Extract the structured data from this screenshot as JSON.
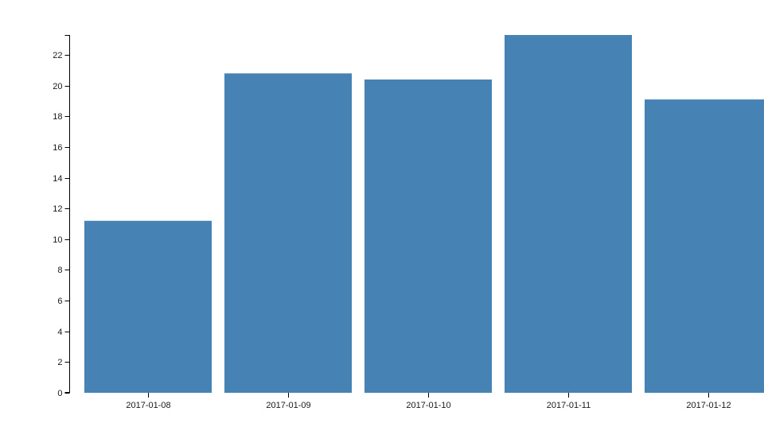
{
  "chart_data": {
    "type": "bar",
    "title": "",
    "xlabel": "",
    "ylabel": "",
    "categories": [
      "2017-01-08",
      "2017-01-09",
      "2017-01-10",
      "2017-01-11",
      "2017-01-12"
    ],
    "values": [
      11.2,
      20.8,
      20.4,
      23.3,
      19.1
    ],
    "ylim": [
      0,
      23.3
    ],
    "yticks": [
      0,
      2,
      4,
      6,
      8,
      10,
      12,
      14,
      16,
      18,
      20,
      22
    ],
    "grid": false,
    "legend": false,
    "bar_color": "#4682b4",
    "axis_color": "#000000",
    "label_color": "#1a1a1a"
  }
}
